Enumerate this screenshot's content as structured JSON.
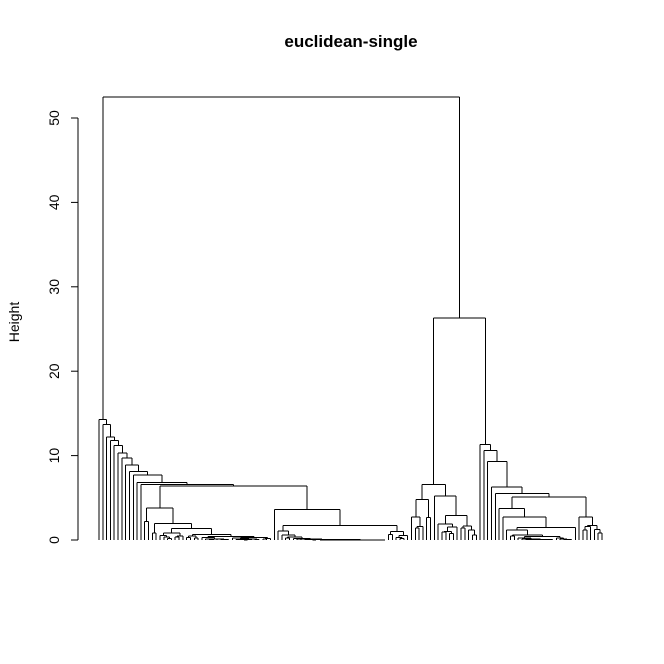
{
  "chart_data": {
    "type": "dendrogram",
    "title": "euclidean-single",
    "ylabel": "Height",
    "xlabel": "",
    "ylim": [
      0,
      54
    ],
    "yticks": [
      0,
      10,
      20,
      30,
      40,
      50
    ],
    "grid": false,
    "leaf_count": 160,
    "leaf_labels_shown": false,
    "linkage": "single",
    "distance": "euclidean",
    "main_merges": [
      {
        "height": 52.5,
        "description": "root: left cluster joins right group"
      },
      {
        "height": 26.3,
        "description": "right group: middle cluster joins far-right cluster"
      },
      {
        "height": 14.3,
        "description": "top of left cluster"
      },
      {
        "height": 11.3,
        "description": "top of far-right cluster"
      },
      {
        "height": 6.6,
        "description": "top of middle cluster"
      }
    ],
    "stair_heights_left": [
      14.3,
      13.7,
      12.2,
      11.8,
      11.2,
      10.3,
      9.7,
      8.9,
      8.1,
      7.7,
      6.8,
      6.6
    ],
    "stair_heights_far_right": [
      11.3,
      10.6,
      9.3,
      6.3,
      5.5
    ]
  }
}
